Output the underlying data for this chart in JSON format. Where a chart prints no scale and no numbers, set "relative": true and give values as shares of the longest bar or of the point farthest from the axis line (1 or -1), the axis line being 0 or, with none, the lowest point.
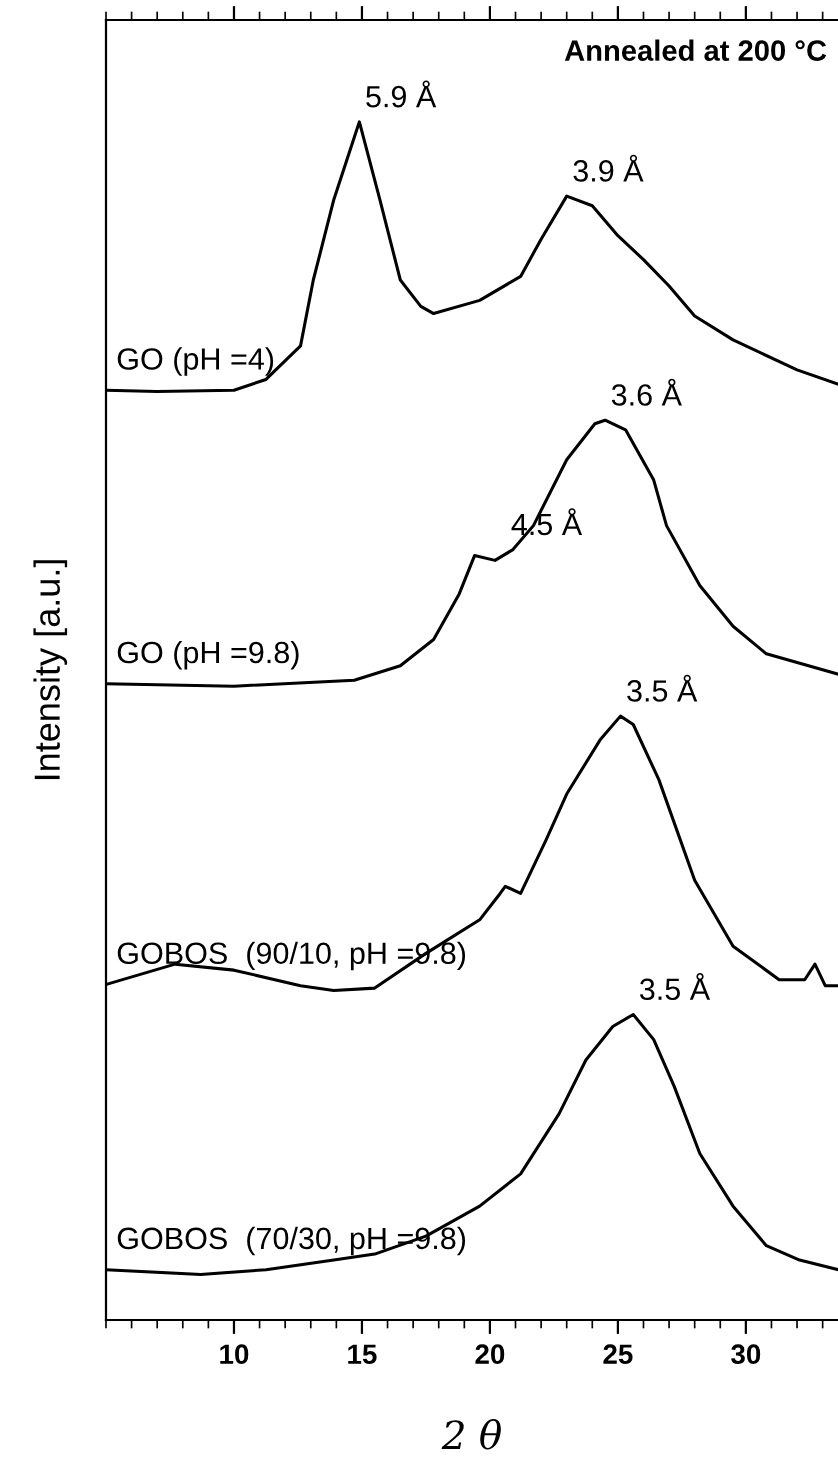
{
  "chart_data": {
    "type": "line",
    "relative": true,
    "xlabel": "2 θ",
    "ylabel": "Intensity [a.u.]",
    "xlim": [
      5,
      33.6
    ],
    "xticks": [
      10,
      15,
      20,
      25,
      30
    ],
    "grid": false,
    "legend": false,
    "marker": "none",
    "line_style": "solid",
    "annotations": [
      "Annealed at 200 °C",
      {
        "text": "5.9 Å",
        "x": 14.9,
        "y": 1.0
      },
      {
        "text": "3.9 Å",
        "x": 23.0,
        "y": 0.938
      },
      {
        "text": "3.6 Å",
        "x": 24.5,
        "y": 0.751
      },
      {
        "text": "4.5 Å",
        "x": 20.6,
        "y": 0.643
      },
      {
        "text": "3.5 Å",
        "x": 25.1,
        "y": 0.504
      },
      {
        "text": "3.5 Å",
        "x": 25.6,
        "y": 0.255
      }
    ],
    "series": [
      {
        "name": "GO (pH =4)",
        "color": "#000000",
        "x": [
          5.0,
          7.0,
          10.0,
          11.25,
          12.6,
          13.1,
          13.9,
          14.9,
          15.7,
          16.5,
          17.3,
          17.8,
          19.6,
          21.2,
          22.0,
          23.0,
          24.0,
          25.0,
          26.0,
          27.0,
          28.0,
          29.5,
          30.0,
          32.0,
          33.6
        ],
        "values": [
          0.776,
          0.775,
          0.776,
          0.785,
          0.813,
          0.868,
          0.935,
          1.0,
          0.935,
          0.868,
          0.846,
          0.84,
          0.851,
          0.871,
          0.902,
          0.938,
          0.93,
          0.905,
          0.885,
          0.863,
          0.838,
          0.818,
          0.813,
          0.793,
          0.781
        ]
      },
      {
        "name": "GO (pH =9.8)",
        "color": "#000000",
        "x": [
          5.0,
          10.0,
          14.7,
          16.5,
          17.8,
          18.8,
          19.4,
          20.2,
          20.9,
          21.7,
          23.0,
          24.1,
          24.5,
          25.3,
          26.4,
          26.9,
          28.2,
          29.5,
          30.8,
          33.6
        ],
        "values": [
          0.531,
          0.529,
          0.534,
          0.546,
          0.568,
          0.606,
          0.638,
          0.634,
          0.643,
          0.663,
          0.718,
          0.748,
          0.751,
          0.743,
          0.701,
          0.663,
          0.613,
          0.579,
          0.556,
          0.539
        ]
      },
      {
        "name": "GOBOS  (90/10, pH =9.8)",
        "color": "#000000",
        "x": [
          5.0,
          7.7,
          10.0,
          12.6,
          13.9,
          15.5,
          17.5,
          19.6,
          20.4,
          20.6,
          21.2,
          22.2,
          23.0,
          24.3,
          25.1,
          25.6,
          26.6,
          28.0,
          29.5,
          31.3,
          32.3,
          32.7,
          33.1,
          33.6
        ],
        "values": [
          0.28,
          0.297,
          0.292,
          0.279,
          0.275,
          0.277,
          0.306,
          0.334,
          0.356,
          0.362,
          0.356,
          0.401,
          0.439,
          0.484,
          0.504,
          0.497,
          0.451,
          0.367,
          0.312,
          0.284,
          0.284,
          0.297,
          0.279,
          0.279
        ]
      },
      {
        "name": "GOBOS  (70/30, pH =9.8)",
        "color": "#000000",
        "x": [
          5.0,
          8.7,
          11.25,
          13.9,
          15.5,
          17.5,
          19.6,
          21.2,
          22.7,
          23.75,
          24.8,
          25.6,
          26.4,
          27.2,
          28.2,
          29.5,
          30.8,
          32.1,
          33.6
        ],
        "values": [
          0.042,
          0.038,
          0.042,
          0.05,
          0.055,
          0.07,
          0.095,
          0.122,
          0.172,
          0.217,
          0.245,
          0.255,
          0.234,
          0.195,
          0.139,
          0.095,
          0.062,
          0.05,
          0.042
        ]
      }
    ]
  }
}
